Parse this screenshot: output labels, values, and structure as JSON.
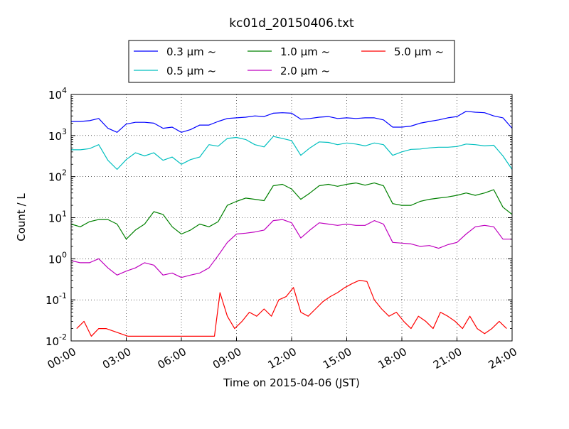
{
  "chart_data": {
    "type": "line",
    "title": "kc01d_20150406.txt",
    "xlabel": "Time on 2015-04-06 (JST)",
    "ylabel": "Count / L",
    "x_unit": "hour of day",
    "xlim": [
      0,
      24
    ],
    "ylim": [
      0.01,
      10000
    ],
    "yscale": "log",
    "grid": true,
    "legend_position": "top-center",
    "xticks": [
      {
        "value": 0,
        "label": "00:00"
      },
      {
        "value": 3,
        "label": "03:00"
      },
      {
        "value": 6,
        "label": "06:00"
      },
      {
        "value": 9,
        "label": "09:00"
      },
      {
        "value": 12,
        "label": "12:00"
      },
      {
        "value": 15,
        "label": "15:00"
      },
      {
        "value": 18,
        "label": "18:00"
      },
      {
        "value": 21,
        "label": "21:00"
      },
      {
        "value": 24,
        "label": "24:00"
      }
    ],
    "yticks": [
      {
        "value": 0.01,
        "base": "10",
        "exp": "-2"
      },
      {
        "value": 0.1,
        "base": "10",
        "exp": "-1"
      },
      {
        "value": 1,
        "base": "10",
        "exp": "0"
      },
      {
        "value": 10,
        "base": "10",
        "exp": "1"
      },
      {
        "value": 100,
        "base": "10",
        "exp": "2"
      },
      {
        "value": 1000,
        "base": "10",
        "exp": "3"
      },
      {
        "value": 10000,
        "base": "10",
        "exp": "4"
      }
    ],
    "series": [
      {
        "name": "0.3 μm ~",
        "size": "0.3",
        "color": "#0000ff",
        "x": [
          0,
          0.5,
          1,
          1.5,
          2,
          2.5,
          3,
          3.5,
          4,
          4.5,
          5,
          5.5,
          6,
          6.5,
          7,
          7.5,
          8,
          8.5,
          9,
          9.5,
          10,
          10.5,
          11,
          11.5,
          12,
          12.5,
          13,
          13.5,
          14,
          14.5,
          15,
          15.5,
          16,
          16.5,
          17,
          17.5,
          18,
          18.5,
          19,
          19.5,
          20,
          20.5,
          21,
          21.5,
          22,
          22.5,
          23,
          23.5,
          24
        ],
        "y": [
          2200,
          2200,
          2300,
          2600,
          1500,
          1200,
          1900,
          2100,
          2100,
          2000,
          1500,
          1600,
          1200,
          1400,
          1800,
          1800,
          2200,
          2600,
          2700,
          2800,
          3000,
          2900,
          3500,
          3600,
          3500,
          2500,
          2600,
          2800,
          2900,
          2600,
          2700,
          2600,
          2700,
          2700,
          2400,
          1600,
          1600,
          1700,
          2000,
          2200,
          2400,
          2700,
          2900,
          3900,
          3700,
          3600,
          3000,
          2700,
          1500
        ]
      },
      {
        "name": "0.5 μm ~",
        "size": "0.5",
        "color": "#00bfbf",
        "x": [
          0,
          0.5,
          1,
          1.5,
          2,
          2.5,
          3,
          3.5,
          4,
          4.5,
          5,
          5.5,
          6,
          6.5,
          7,
          7.5,
          8,
          8.5,
          9,
          9.5,
          10,
          10.5,
          11,
          11.5,
          12,
          12.5,
          13,
          13.5,
          14,
          14.5,
          15,
          15.5,
          16,
          16.5,
          17,
          17.5,
          18,
          18.5,
          19,
          19.5,
          20,
          20.5,
          21,
          21.5,
          22,
          22.5,
          23,
          23.5,
          24
        ],
        "y": [
          450,
          450,
          480,
          600,
          250,
          150,
          260,
          380,
          320,
          380,
          250,
          300,
          200,
          260,
          300,
          600,
          550,
          850,
          900,
          800,
          600,
          530,
          950,
          850,
          750,
          330,
          500,
          700,
          680,
          600,
          660,
          620,
          560,
          660,
          600,
          330,
          400,
          460,
          470,
          500,
          520,
          520,
          540,
          620,
          600,
          560,
          580,
          320,
          150
        ]
      },
      {
        "name": "1.0 μm ~",
        "size": "1.0",
        "color": "#008000",
        "x": [
          0,
          0.5,
          1,
          1.5,
          2,
          2.5,
          3,
          3.5,
          4,
          4.5,
          5,
          5.5,
          6,
          6.5,
          7,
          7.5,
          8,
          8.5,
          9,
          9.5,
          10,
          10.5,
          11,
          11.5,
          12,
          12.5,
          13,
          13.5,
          14,
          14.5,
          15,
          15.5,
          16,
          16.5,
          17,
          17.5,
          18,
          18.5,
          19,
          19.5,
          20,
          20.5,
          21,
          21.5,
          22,
          22.5,
          23,
          23.5,
          24
        ],
        "y": [
          7,
          6,
          8,
          9,
          9,
          7,
          3,
          5,
          7,
          14,
          12,
          6,
          4,
          5,
          7,
          6,
          8,
          20,
          25,
          30,
          28,
          26,
          60,
          65,
          50,
          28,
          40,
          60,
          65,
          58,
          65,
          70,
          62,
          70,
          60,
          22,
          20,
          20,
          25,
          28,
          30,
          32,
          35,
          40,
          35,
          40,
          48,
          18,
          12
        ]
      },
      {
        "name": "2.0 μm ~",
        "size": "2.0",
        "color": "#bf00bf",
        "x": [
          0,
          0.5,
          1,
          1.5,
          2,
          2.5,
          3,
          3.5,
          4,
          4.5,
          5,
          5.5,
          6,
          6.5,
          7,
          7.5,
          8,
          8.5,
          9,
          9.5,
          10,
          10.5,
          11,
          11.5,
          12,
          12.5,
          13,
          13.5,
          14,
          14.5,
          15,
          15.5,
          16,
          16.5,
          17,
          17.5,
          18,
          18.5,
          19,
          19.5,
          20,
          20.5,
          21,
          21.5,
          22,
          22.5,
          23,
          23.5,
          24
        ],
        "y": [
          0.9,
          0.8,
          0.8,
          1.0,
          0.6,
          0.4,
          0.5,
          0.6,
          0.8,
          0.7,
          0.4,
          0.45,
          0.35,
          0.4,
          0.45,
          0.6,
          1.2,
          2.5,
          4,
          4.2,
          4.5,
          5,
          8.5,
          9,
          7.5,
          3.2,
          5,
          7.5,
          7,
          6.5,
          7,
          6.5,
          6.5,
          8.5,
          7,
          2.5,
          2.4,
          2.3,
          2,
          2.1,
          1.8,
          2.2,
          2.5,
          4,
          6,
          6.5,
          6,
          3,
          3
        ]
      },
      {
        "name": "5.0 μm ~",
        "size": "5.0",
        "color": "#ff0000",
        "x": [
          0.3,
          0.7,
          1.1,
          1.5,
          1.9,
          3.1,
          3.7,
          4.1,
          5.0,
          6.2,
          6.8,
          7.4,
          7.8,
          8.1,
          8.5,
          8.9,
          9.3,
          9.7,
          10.1,
          10.5,
          10.9,
          11.3,
          11.7,
          12.1,
          12.5,
          12.9,
          13.3,
          13.7,
          14.1,
          14.5,
          14.9,
          15.3,
          15.7,
          16.1,
          16.5,
          16.9,
          17.3,
          17.7,
          18.1,
          18.5,
          18.9,
          19.3,
          19.7,
          20.1,
          20.5,
          20.9,
          21.3,
          21.7,
          22.1,
          22.5,
          22.9,
          23.3,
          23.7
        ],
        "y": [
          0.02,
          0.03,
          0.013,
          0.02,
          0.02,
          0.013,
          0.013,
          0.013,
          0.013,
          0.013,
          0.013,
          0.013,
          0.013,
          0.15,
          0.04,
          0.02,
          0.03,
          0.05,
          0.04,
          0.06,
          0.04,
          0.1,
          0.12,
          0.2,
          0.05,
          0.04,
          0.06,
          0.09,
          0.12,
          0.15,
          0.2,
          0.25,
          0.3,
          0.28,
          0.1,
          0.06,
          0.04,
          0.05,
          0.03,
          0.02,
          0.04,
          0.03,
          0.02,
          0.05,
          0.04,
          0.03,
          0.02,
          0.04,
          0.02,
          0.015,
          0.02,
          0.03,
          0.02
        ]
      }
    ]
  }
}
